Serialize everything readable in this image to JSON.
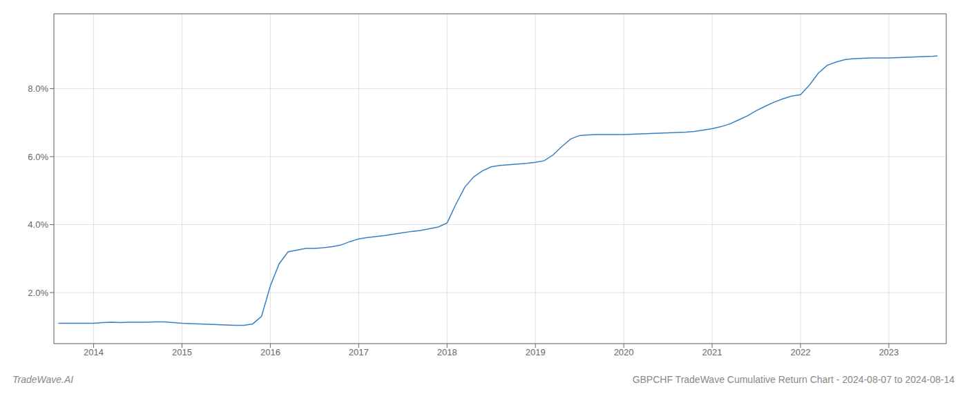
{
  "chart_data": {
    "type": "line",
    "title": "GBPCHF TradeWave Cumulative Return Chart - 2024-08-07 to 2024-08-14",
    "annotations": [
      "TradeWave.AI"
    ],
    "x": [
      2013.6,
      2014.0,
      2014.1,
      2014.2,
      2014.3,
      2014.4,
      2014.5,
      2014.6,
      2014.7,
      2014.8,
      2014.9,
      2015.0,
      2015.1,
      2015.2,
      2015.3,
      2015.4,
      2015.5,
      2015.6,
      2015.7,
      2015.8,
      2015.9,
      2016.0,
      2016.1,
      2016.2,
      2016.3,
      2016.4,
      2016.5,
      2016.6,
      2016.7,
      2016.8,
      2016.9,
      2017.0,
      2017.1,
      2017.2,
      2017.3,
      2017.4,
      2017.5,
      2017.6,
      2017.7,
      2017.8,
      2017.9,
      2018.0,
      2018.1,
      2018.2,
      2018.3,
      2018.4,
      2018.5,
      2018.6,
      2018.7,
      2018.8,
      2018.9,
      2019.0,
      2019.1,
      2019.2,
      2019.3,
      2019.4,
      2019.5,
      2019.6,
      2019.7,
      2019.8,
      2019.9,
      2020.0,
      2020.1,
      2020.2,
      2020.3,
      2020.4,
      2020.5,
      2020.6,
      2020.7,
      2020.8,
      2020.9,
      2021.0,
      2021.1,
      2021.2,
      2021.3,
      2021.4,
      2021.5,
      2021.6,
      2021.7,
      2021.8,
      2021.9,
      2022.0,
      2022.1,
      2022.2,
      2022.3,
      2022.4,
      2022.5,
      2022.6,
      2022.7,
      2022.8,
      2022.9,
      2023.0,
      2023.1,
      2023.2,
      2023.3,
      2023.4,
      2023.5,
      2023.55
    ],
    "values": [
      1.1,
      1.1,
      1.12,
      1.13,
      1.12,
      1.13,
      1.13,
      1.13,
      1.14,
      1.14,
      1.12,
      1.1,
      1.09,
      1.08,
      1.07,
      1.06,
      1.05,
      1.04,
      1.04,
      1.08,
      1.3,
      2.2,
      2.85,
      3.2,
      3.25,
      3.3,
      3.3,
      3.32,
      3.35,
      3.4,
      3.5,
      3.58,
      3.62,
      3.65,
      3.68,
      3.72,
      3.76,
      3.8,
      3.83,
      3.88,
      3.93,
      4.05,
      4.6,
      5.1,
      5.4,
      5.58,
      5.7,
      5.74,
      5.76,
      5.78,
      5.8,
      5.83,
      5.88,
      6.05,
      6.3,
      6.52,
      6.62,
      6.64,
      6.65,
      6.65,
      6.65,
      6.65,
      6.66,
      6.67,
      6.68,
      6.69,
      6.7,
      6.71,
      6.72,
      6.74,
      6.78,
      6.82,
      6.88,
      6.96,
      7.08,
      7.2,
      7.35,
      7.48,
      7.6,
      7.7,
      7.78,
      7.82,
      8.1,
      8.45,
      8.68,
      8.78,
      8.85,
      8.88,
      8.89,
      8.9,
      8.9,
      8.9,
      8.91,
      8.92,
      8.93,
      8.94,
      8.95,
      8.96
    ],
    "color": "#3a7fc1",
    "xlim": [
      2013.55,
      2023.65
    ],
    "xticks": [
      2014,
      2015,
      2016,
      2017,
      2018,
      2019,
      2020,
      2021,
      2022,
      2023
    ],
    "ylim": [
      0.5,
      10.2
    ],
    "yticks": [
      {
        "value": 2.0,
        "label": "2.0%"
      },
      {
        "value": 4.0,
        "label": "4.0%"
      },
      {
        "value": 6.0,
        "label": "6.0%"
      },
      {
        "value": 8.0,
        "label": "8.0%"
      }
    ],
    "grid": true
  }
}
